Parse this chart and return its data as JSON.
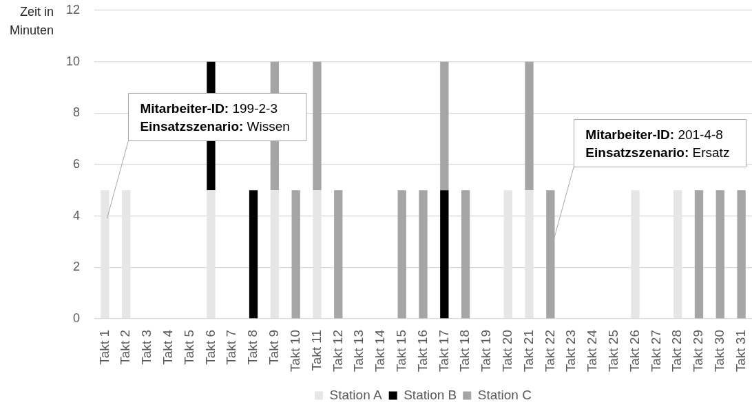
{
  "chart_data": {
    "type": "bar",
    "stacked": true,
    "ylabel": "Zeit in Minuten",
    "categories": [
      "Takt 1",
      "Takt 2",
      "Takt 3",
      "Takt 4",
      "Takt 5",
      "Takt 6",
      "Takt 7",
      "Takt 8",
      "Takt 9",
      "Takt 10",
      "Takt 11",
      "Takt 12",
      "Takt 13",
      "Takt 14",
      "Takt 15",
      "Takt 16",
      "Takt 17",
      "Takt 18",
      "Takt 19",
      "Takt 20",
      "Takt 21",
      "Takt 22",
      "Takt 23",
      "Takt 24",
      "Takt 25",
      "Takt 26",
      "Takt 27",
      "Takt 28",
      "Takt 29",
      "Takt 30",
      "Takt 31"
    ],
    "series": [
      {
        "name": "Station A",
        "color": "#e7e6e6",
        "values": [
          5,
          5,
          null,
          null,
          null,
          5,
          null,
          null,
          5,
          null,
          5,
          null,
          null,
          null,
          null,
          null,
          null,
          null,
          null,
          5,
          5,
          null,
          null,
          null,
          null,
          5,
          null,
          5,
          null,
          null,
          null
        ]
      },
      {
        "name": "Station B",
        "color": "#000000",
        "values": [
          null,
          null,
          null,
          null,
          null,
          5,
          null,
          5,
          null,
          null,
          null,
          null,
          null,
          null,
          null,
          null,
          5,
          null,
          null,
          null,
          null,
          null,
          null,
          null,
          null,
          null,
          null,
          null,
          null,
          null,
          null
        ]
      },
      {
        "name": "Station C",
        "color": "#a5a5a5",
        "values": [
          null,
          null,
          null,
          null,
          null,
          null,
          null,
          null,
          5,
          5,
          5,
          5,
          null,
          null,
          5,
          5,
          5,
          5,
          null,
          null,
          5,
          5,
          null,
          null,
          null,
          null,
          null,
          null,
          5,
          5,
          5
        ]
      }
    ],
    "ylim": [
      0,
      12
    ],
    "yticks": [
      0,
      2,
      4,
      6,
      8,
      10,
      12
    ],
    "grid": "y",
    "legend": "bottom",
    "annotations": [
      {
        "text": "Mitarbeiter-ID: 199-2-3\nEinsatzszenario: Wissen",
        "x": "Takt 1",
        "y": 3.9
      },
      {
        "text": "Mitarbeiter-ID: 201-4-8\nEinsatzszenario: Ersatz",
        "x": "Takt 22",
        "y": 2.9
      }
    ]
  }
}
